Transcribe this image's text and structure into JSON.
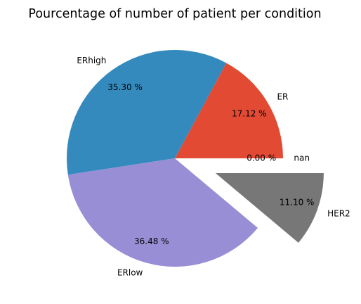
{
  "chart_data": {
    "type": "pie",
    "title": "Pourcentage of number of patient per condition",
    "slices": [
      {
        "label": "ER",
        "value": 17.12,
        "pct_text": "17.12 %",
        "color": "#E24A33",
        "exploded": false
      },
      {
        "label": "ERhigh",
        "value": 35.3,
        "pct_text": "35.30 %",
        "color": "#348ABD",
        "exploded": false
      },
      {
        "label": "ERlow",
        "value": 36.48,
        "pct_text": "36.48 %",
        "color": "#988ED5",
        "exploded": false
      },
      {
        "label": "HER2",
        "value": 11.1,
        "pct_text": "11.10 %",
        "color": "#777777",
        "exploded": true
      },
      {
        "label": "nan",
        "value": 0.0,
        "pct_text": "0.00 %",
        "color": "#FBC15E",
        "exploded": false
      }
    ],
    "start_angle": 0,
    "direction": "counterclockwise",
    "autopct_format": "%.2f %%"
  }
}
